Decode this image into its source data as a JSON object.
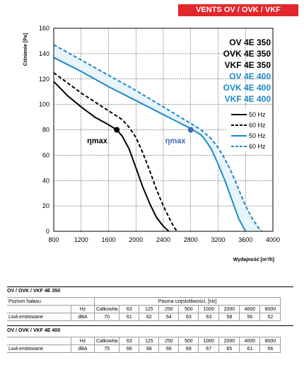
{
  "banner": "VENTS OV / OVK / VKF",
  "chart_data": {
    "type": "line",
    "xlabel": "Wydajność [m³/h]",
    "ylabel": "Ciśnienie [Pa]",
    "xlim": [
      800,
      4000
    ],
    "ylim": [
      0,
      160
    ],
    "xticks": [
      800,
      1200,
      1600,
      2000,
      2400,
      2800,
      3200,
      3600,
      4000
    ],
    "yticks": [
      0,
      20,
      40,
      60,
      80,
      100,
      120,
      140,
      160
    ],
    "grid": true,
    "legend_position": "right",
    "models": [
      {
        "label": "OV 4E 350",
        "color": "#000000"
      },
      {
        "label": "OVK 4E 350",
        "color": "#000000"
      },
      {
        "label": "VKF 4E 350",
        "color": "#000000"
      },
      {
        "label": "OV 4E 400",
        "color": "#1a8ac4"
      },
      {
        "label": "OVK 4E 400",
        "color": "#1a8ac4"
      },
      {
        "label": "VKF 4E 400",
        "color": "#1a8ac4"
      }
    ],
    "legend": [
      {
        "label": "50 Hz",
        "color": "#000000",
        "dash": false
      },
      {
        "label": "60 Hz",
        "color": "#000000",
        "dash": true
      },
      {
        "label": "50 Hz",
        "color": "#1a8ac4",
        "dash": false
      },
      {
        "label": "60 Hz",
        "color": "#1a8ac4",
        "dash": true
      }
    ],
    "series": [
      {
        "color": "#000000",
        "dash": false,
        "points": [
          [
            800,
            118
          ],
          [
            1000,
            107
          ],
          [
            1200,
            98
          ],
          [
            1400,
            90
          ],
          [
            1600,
            84
          ],
          [
            1720,
            80
          ],
          [
            1800,
            75
          ],
          [
            1900,
            65
          ],
          [
            2000,
            50
          ],
          [
            2100,
            35
          ],
          [
            2200,
            22
          ],
          [
            2300,
            11
          ],
          [
            2400,
            4
          ],
          [
            2480,
            0
          ]
        ]
      },
      {
        "color": "#000000",
        "dash": true,
        "points": [
          [
            800,
            125
          ],
          [
            1000,
            117
          ],
          [
            1200,
            109
          ],
          [
            1400,
            102
          ],
          [
            1600,
            95
          ],
          [
            1800,
            88
          ],
          [
            1900,
            82
          ],
          [
            2000,
            74
          ],
          [
            2100,
            62
          ],
          [
            2200,
            48
          ],
          [
            2300,
            33
          ],
          [
            2400,
            20
          ],
          [
            2500,
            9
          ],
          [
            2560,
            3
          ],
          [
            2600,
            0
          ]
        ]
      },
      {
        "color": "#1a8ac4",
        "dash": false,
        "points": [
          [
            800,
            137
          ],
          [
            1200,
            126
          ],
          [
            1600,
            114
          ],
          [
            2000,
            103
          ],
          [
            2400,
            92
          ],
          [
            2800,
            81
          ],
          [
            2950,
            76
          ],
          [
            3000,
            73
          ],
          [
            3100,
            65
          ],
          [
            3200,
            53
          ],
          [
            3300,
            40
          ],
          [
            3400,
            25
          ],
          [
            3500,
            10
          ],
          [
            3600,
            0
          ]
        ]
      },
      {
        "color": "#1a8ac4",
        "dash": true,
        "points": [
          [
            800,
            147
          ],
          [
            1200,
            135
          ],
          [
            1600,
            123
          ],
          [
            2000,
            111
          ],
          [
            2400,
            98
          ],
          [
            2800,
            85
          ],
          [
            2950,
            80
          ],
          [
            3100,
            73
          ],
          [
            3200,
            66
          ],
          [
            3300,
            57
          ],
          [
            3400,
            46
          ],
          [
            3500,
            33
          ],
          [
            3600,
            20
          ],
          [
            3700,
            10
          ],
          [
            3800,
            2
          ],
          [
            3840,
            0
          ]
        ]
      }
    ],
    "markers": [
      {
        "label": "ηmax",
        "x": 1720,
        "y": 80,
        "color": "#000000"
      },
      {
        "label": "ηmax",
        "x": 2800,
        "y": 80,
        "color": "#3a6ab8"
      }
    ]
  },
  "table350": {
    "title": "OV / OVK / VKF 4E 350",
    "noise_label": "Poziom hałasu",
    "band_label": "Pasma częstotliwości, [Hz]",
    "hz_label": "Hz",
    "total_label": "Całkowita",
    "row_label": "LwA emitowane",
    "unit": "dBA",
    "freqs": [
      "63",
      "125",
      "250",
      "500",
      "1000",
      "2000",
      "4000",
      "8000"
    ],
    "total": "70",
    "values": [
      "61",
      "62",
      "64",
      "63",
      "63",
      "58",
      "56",
      "52"
    ]
  },
  "table400": {
    "title": "OV / OVK / VKF 4E 400",
    "hz_label": "Hz",
    "total_label": "Całkowita",
    "row_label": "LwA emitowane",
    "unit": "dBA",
    "freqs": [
      "63",
      "125",
      "250",
      "500",
      "1000",
      "2000",
      "4000",
      "8000"
    ],
    "total": "75",
    "values": [
      "66",
      "68",
      "66",
      "69",
      "67",
      "65",
      "61",
      "56"
    ]
  }
}
